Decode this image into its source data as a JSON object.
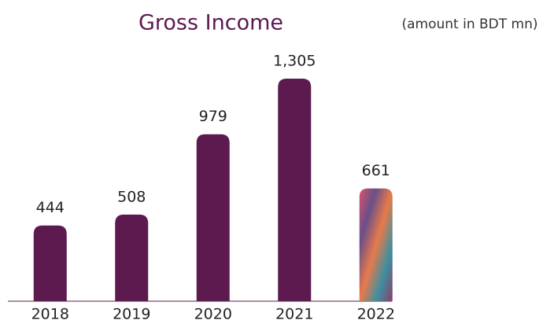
{
  "chart_data": {
    "type": "bar",
    "title": "Gross Income",
    "subtitle": "(amount in BDT mn)",
    "categories": [
      "2018",
      "2019",
      "2020",
      "2021",
      "2022"
    ],
    "values": [
      444,
      508,
      979,
      1305,
      661
    ],
    "value_labels": [
      "444",
      "508",
      "979",
      "1,305",
      "661"
    ],
    "colors": [
      "#5c1a4f",
      "#5c1a4f",
      "#5c1a4f",
      "#5c1a4f",
      "url(#paisley)"
    ]
  }
}
